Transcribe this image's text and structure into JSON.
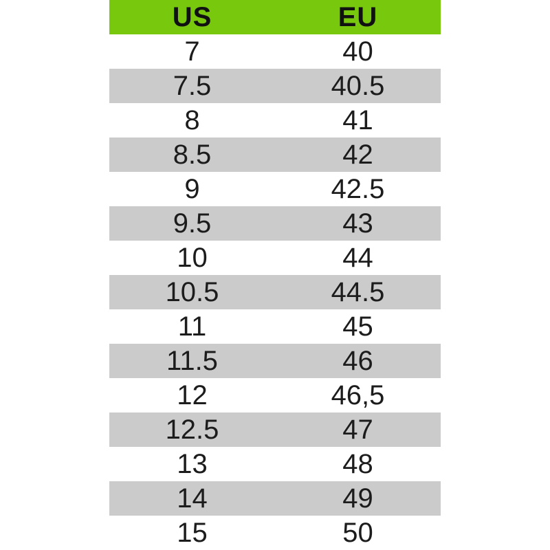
{
  "colors": {
    "header_green": "#78c80e",
    "row_gray": "#cbcbcb",
    "row_white": "#ffffff",
    "text": "#1c1c1c"
  },
  "chart_data": {
    "type": "table",
    "columns": [
      "US",
      "EU"
    ],
    "rows": [
      [
        "7",
        "40"
      ],
      [
        "7.5",
        "40.5"
      ],
      [
        "8",
        "41"
      ],
      [
        "8.5",
        "42"
      ],
      [
        "9",
        "42.5"
      ],
      [
        "9.5",
        "43"
      ],
      [
        "10",
        "44"
      ],
      [
        "10.5",
        "44.5"
      ],
      [
        "11",
        "45"
      ],
      [
        "11.5",
        "46"
      ],
      [
        "12",
        "46,5"
      ],
      [
        "12.5",
        "47"
      ],
      [
        "13",
        "48"
      ],
      [
        "14",
        "49"
      ],
      [
        "15",
        "50"
      ]
    ],
    "layout": {
      "header_background": "#78c80e",
      "alternating_row_colors": [
        "#ffffff",
        "#cbcbcb"
      ],
      "grid": false
    }
  }
}
